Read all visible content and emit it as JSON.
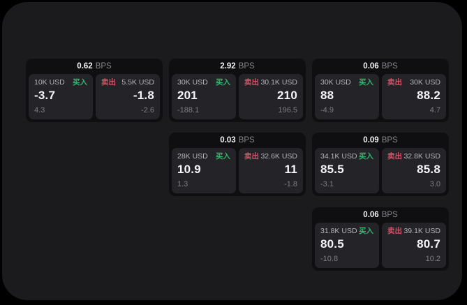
{
  "labels": {
    "bps_unit": "BPS",
    "buy": "买入",
    "sell": "卖出"
  },
  "colors": {
    "background": "#000000",
    "panel_bg": "#1b1b1d",
    "card_bg": "#0f0f11",
    "tile_bg": "#242428",
    "buy_green": "#35b570",
    "sell_red": "#d25168",
    "value_text": "#f4f4f6",
    "muted_text": "#7d7d82"
  },
  "cards": [
    {
      "bps": "0.62",
      "buy": {
        "amount": "10K USD",
        "value": "-3.7",
        "sub": "4.3"
      },
      "sell": {
        "amount": "5.5K USD",
        "value": "-1.8",
        "sub": "-2.6"
      }
    },
    {
      "bps": "2.92",
      "buy": {
        "amount": "30K USD",
        "value": "201",
        "sub": "-188.1"
      },
      "sell": {
        "amount": "30.1K USD",
        "value": "210",
        "sub": "196.5"
      }
    },
    {
      "bps": "0.06",
      "buy": {
        "amount": "30K USD",
        "value": "88",
        "sub": "-4.9"
      },
      "sell": {
        "amount": "30K USD",
        "value": "88.2",
        "sub": "4.7"
      }
    },
    {
      "bps": "0.03",
      "buy": {
        "amount": "28K USD",
        "value": "10.9",
        "sub": "1.3"
      },
      "sell": {
        "amount": "32.6K USD",
        "value": "11",
        "sub": "-1.8"
      }
    },
    {
      "bps": "0.09",
      "buy": {
        "amount": "34.1K USD",
        "value": "85.5",
        "sub": "-3.1"
      },
      "sell": {
        "amount": "32.8K USD",
        "value": "85.8",
        "sub": "3.0"
      }
    },
    {
      "bps": "0.06",
      "buy": {
        "amount": "31.8K USD",
        "value": "80.5",
        "sub": "-10.8"
      },
      "sell": {
        "amount": "39.1K USD",
        "value": "80.7",
        "sub": "10.2"
      }
    }
  ]
}
